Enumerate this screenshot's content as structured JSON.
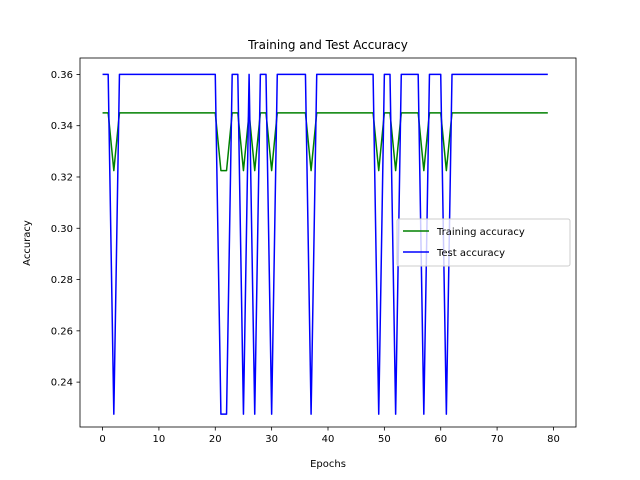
{
  "chart_data": {
    "type": "line",
    "title": "Training and Test Accuracy",
    "xlabel": "Epochs",
    "ylabel": "Accuracy",
    "xlim": [
      -4,
      84
    ],
    "ylim": [
      0.2225,
      0.3664
    ],
    "xticks": [
      0,
      10,
      20,
      30,
      40,
      50,
      60,
      70,
      80
    ],
    "yticks": [
      0.24,
      0.26,
      0.28,
      0.3,
      0.32,
      0.34,
      0.36
    ],
    "ytick_decimals": 2,
    "grid": false,
    "legend_position": "center-right",
    "series": [
      {
        "name": "Training accuracy",
        "color": "#008000",
        "x": [
          0,
          1,
          2,
          3,
          4,
          5,
          6,
          7,
          8,
          9,
          10,
          11,
          12,
          13,
          14,
          15,
          16,
          17,
          18,
          19,
          20,
          21,
          22,
          23,
          24,
          25,
          26,
          27,
          28,
          29,
          30,
          31,
          32,
          33,
          34,
          35,
          36,
          37,
          38,
          39,
          40,
          41,
          42,
          43,
          44,
          45,
          46,
          47,
          48,
          49,
          50,
          51,
          52,
          53,
          54,
          55,
          56,
          57,
          58,
          59,
          60,
          61,
          62,
          63,
          64,
          65,
          66,
          67,
          68,
          69,
          70,
          71,
          72,
          73,
          74,
          75,
          76,
          77,
          78,
          79
        ],
        "y": [
          0.345,
          0.345,
          0.3225,
          0.345,
          0.345,
          0.345,
          0.345,
          0.345,
          0.345,
          0.345,
          0.345,
          0.345,
          0.345,
          0.345,
          0.345,
          0.345,
          0.345,
          0.345,
          0.345,
          0.345,
          0.345,
          0.3225,
          0.3225,
          0.345,
          0.345,
          0.3225,
          0.345,
          0.3225,
          0.345,
          0.345,
          0.3225,
          0.345,
          0.345,
          0.345,
          0.345,
          0.345,
          0.345,
          0.3225,
          0.345,
          0.345,
          0.345,
          0.345,
          0.345,
          0.345,
          0.345,
          0.345,
          0.345,
          0.345,
          0.345,
          0.3225,
          0.345,
          0.345,
          0.3225,
          0.345,
          0.345,
          0.345,
          0.345,
          0.3225,
          0.345,
          0.345,
          0.345,
          0.3225,
          0.345,
          0.345,
          0.345,
          0.345,
          0.345,
          0.345,
          0.345,
          0.345,
          0.345,
          0.345,
          0.345,
          0.345,
          0.345,
          0.345,
          0.345,
          0.345,
          0.345,
          0.345
        ]
      },
      {
        "name": "Test accuracy",
        "color": "#0000ff",
        "x": [
          0,
          1,
          2,
          3,
          4,
          5,
          6,
          7,
          8,
          9,
          10,
          11,
          12,
          13,
          14,
          15,
          16,
          17,
          18,
          19,
          20,
          21,
          22,
          23,
          24,
          25,
          26,
          27,
          28,
          29,
          30,
          31,
          32,
          33,
          34,
          35,
          36,
          37,
          38,
          39,
          40,
          41,
          42,
          43,
          44,
          45,
          46,
          47,
          48,
          49,
          50,
          51,
          52,
          53,
          54,
          55,
          56,
          57,
          58,
          59,
          60,
          61,
          62,
          63,
          64,
          65,
          66,
          67,
          68,
          69,
          70,
          71,
          72,
          73,
          74,
          75,
          76,
          77,
          78,
          79
        ],
        "y": [
          0.36,
          0.36,
          0.2275,
          0.36,
          0.36,
          0.36,
          0.36,
          0.36,
          0.36,
          0.36,
          0.36,
          0.36,
          0.36,
          0.36,
          0.36,
          0.36,
          0.36,
          0.36,
          0.36,
          0.36,
          0.36,
          0.2275,
          0.2275,
          0.36,
          0.36,
          0.2275,
          0.36,
          0.2275,
          0.36,
          0.36,
          0.2275,
          0.36,
          0.36,
          0.36,
          0.36,
          0.36,
          0.36,
          0.2275,
          0.36,
          0.36,
          0.36,
          0.36,
          0.36,
          0.36,
          0.36,
          0.36,
          0.36,
          0.36,
          0.36,
          0.2275,
          0.36,
          0.36,
          0.2275,
          0.36,
          0.36,
          0.36,
          0.36,
          0.2275,
          0.36,
          0.36,
          0.36,
          0.2275,
          0.36,
          0.36,
          0.36,
          0.36,
          0.36,
          0.36,
          0.36,
          0.36,
          0.36,
          0.36,
          0.36,
          0.36,
          0.36,
          0.36,
          0.36,
          0.36,
          0.36,
          0.36
        ]
      }
    ]
  }
}
